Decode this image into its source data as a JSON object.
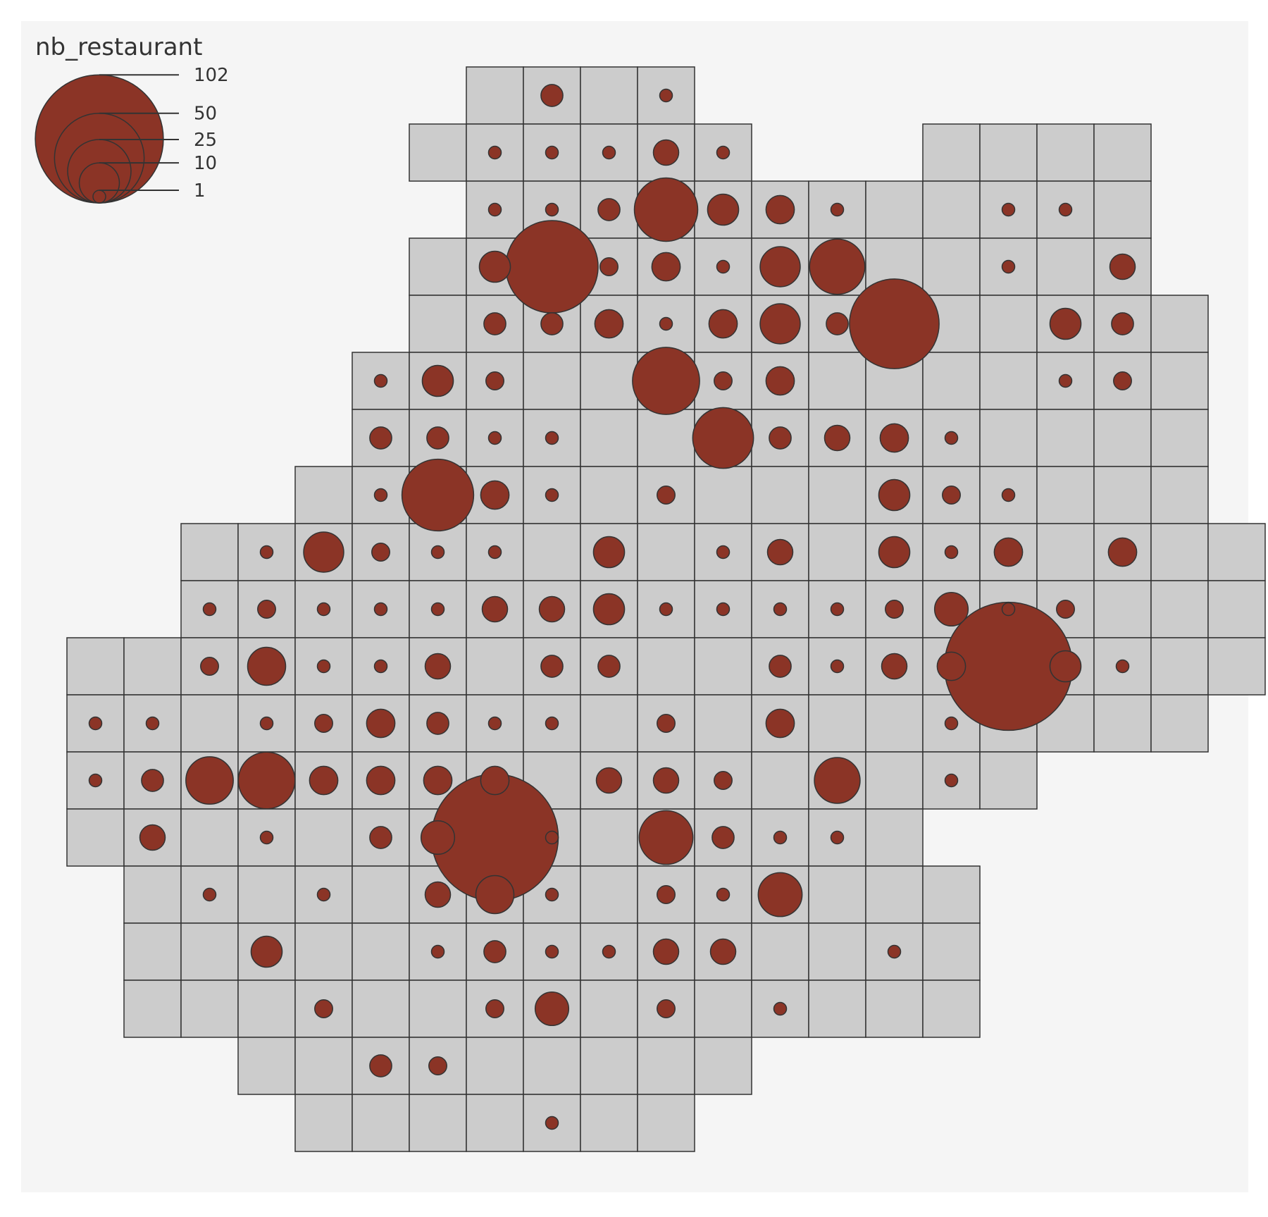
{
  "legend": {
    "title": "nb_restaurant",
    "breaks": [
      {
        "label": "102",
        "value": 102
      },
      {
        "label": "50",
        "value": 50
      },
      {
        "label": "25",
        "value": 25
      },
      {
        "label": "10",
        "value": 10
      },
      {
        "label": "1",
        "value": 1
      }
    ]
  },
  "colors": {
    "panel": "#f5f5f5",
    "cell_fill": "#cccccc",
    "cell_stroke": "#333333",
    "circle_fill": "#8b3426",
    "circle_stroke": "#333333"
  },
  "grid": {
    "row_spans": [
      [
        0,
        7,
        10
      ],
      [
        1,
        6,
        11
      ],
      [
        1,
        15,
        18
      ],
      [
        2,
        7,
        18
      ],
      [
        3,
        6,
        18
      ],
      [
        4,
        6,
        19
      ],
      [
        5,
        5,
        19
      ],
      [
        6,
        5,
        19
      ],
      [
        7,
        4,
        19
      ],
      [
        8,
        2,
        20
      ],
      [
        9,
        2,
        20
      ],
      [
        10,
        0,
        20
      ],
      [
        11,
        0,
        19
      ],
      [
        12,
        0,
        16
      ],
      [
        13,
        0,
        14
      ],
      [
        14,
        1,
        15
      ],
      [
        15,
        1,
        15
      ],
      [
        16,
        1,
        15
      ],
      [
        17,
        3,
        11
      ],
      [
        18,
        4,
        10
      ]
    ]
  },
  "symbols": [
    [
      0,
      8,
      3
    ],
    [
      0,
      10,
      1
    ],
    [
      1,
      7,
      1
    ],
    [
      1,
      8,
      1
    ],
    [
      1,
      9,
      1
    ],
    [
      1,
      10,
      4
    ],
    [
      1,
      11,
      1
    ],
    [
      2,
      7,
      1
    ],
    [
      2,
      8,
      1
    ],
    [
      2,
      9,
      3
    ],
    [
      2,
      10,
      25
    ],
    [
      2,
      11,
      6
    ],
    [
      2,
      12,
      5
    ],
    [
      2,
      13,
      1
    ],
    [
      2,
      16,
      1
    ],
    [
      2,
      17,
      1
    ],
    [
      3,
      7,
      6
    ],
    [
      3,
      8,
      53
    ],
    [
      3,
      9,
      2
    ],
    [
      3,
      10,
      5
    ],
    [
      3,
      11,
      1
    ],
    [
      3,
      12,
      10
    ],
    [
      3,
      13,
      19
    ],
    [
      3,
      16,
      1
    ],
    [
      3,
      18,
      4
    ],
    [
      4,
      7,
      3
    ],
    [
      4,
      8,
      3
    ],
    [
      4,
      9,
      5
    ],
    [
      4,
      10,
      1
    ],
    [
      4,
      11,
      5
    ],
    [
      4,
      12,
      10
    ],
    [
      4,
      13,
      3
    ],
    [
      4,
      14,
      50
    ],
    [
      4,
      17,
      6
    ],
    [
      4,
      18,
      3
    ],
    [
      5,
      5,
      1
    ],
    [
      5,
      6,
      6
    ],
    [
      5,
      7,
      2
    ],
    [
      5,
      10,
      28
    ],
    [
      5,
      11,
      2
    ],
    [
      5,
      12,
      5
    ],
    [
      5,
      17,
      1
    ],
    [
      5,
      18,
      2
    ],
    [
      6,
      5,
      3
    ],
    [
      6,
      6,
      3
    ],
    [
      6,
      7,
      1
    ],
    [
      6,
      8,
      1
    ],
    [
      6,
      11,
      23
    ],
    [
      6,
      12,
      3
    ],
    [
      6,
      13,
      4
    ],
    [
      6,
      14,
      5
    ],
    [
      6,
      15,
      1
    ],
    [
      7,
      5,
      1
    ],
    [
      7,
      6,
      32
    ],
    [
      7,
      7,
      5
    ],
    [
      7,
      8,
      1
    ],
    [
      7,
      10,
      2
    ],
    [
      7,
      14,
      6
    ],
    [
      7,
      15,
      2
    ],
    [
      7,
      16,
      1
    ],
    [
      8,
      3,
      1
    ],
    [
      8,
      4,
      10
    ],
    [
      8,
      5,
      2
    ],
    [
      8,
      6,
      1
    ],
    [
      8,
      7,
      1
    ],
    [
      8,
      9,
      6
    ],
    [
      8,
      11,
      1
    ],
    [
      8,
      12,
      4
    ],
    [
      8,
      14,
      6
    ],
    [
      8,
      15,
      1
    ],
    [
      8,
      16,
      5
    ],
    [
      8,
      18,
      5
    ],
    [
      9,
      2,
      1
    ],
    [
      9,
      3,
      2
    ],
    [
      9,
      4,
      1
    ],
    [
      9,
      5,
      1
    ],
    [
      9,
      6,
      1
    ],
    [
      9,
      7,
      4
    ],
    [
      9,
      8,
      4
    ],
    [
      9,
      9,
      6
    ],
    [
      9,
      10,
      1
    ],
    [
      9,
      11,
      1
    ],
    [
      9,
      12,
      1
    ],
    [
      9,
      13,
      1
    ],
    [
      9,
      14,
      2
    ],
    [
      9,
      15,
      7
    ],
    [
      9,
      16,
      1
    ],
    [
      9,
      17,
      2
    ],
    [
      10,
      2,
      2
    ],
    [
      10,
      3,
      9
    ],
    [
      10,
      4,
      1
    ],
    [
      10,
      5,
      1
    ],
    [
      10,
      6,
      4
    ],
    [
      10,
      8,
      3
    ],
    [
      10,
      9,
      3
    ],
    [
      10,
      12,
      3
    ],
    [
      10,
      13,
      1
    ],
    [
      10,
      14,
      4
    ],
    [
      10,
      15,
      5
    ],
    [
      10,
      16,
      102
    ],
    [
      10,
      17,
      6
    ],
    [
      10,
      18,
      1
    ],
    [
      11,
      0,
      1
    ],
    [
      11,
      1,
      1
    ],
    [
      11,
      3,
      1
    ],
    [
      11,
      4,
      2
    ],
    [
      11,
      5,
      5
    ],
    [
      11,
      6,
      3
    ],
    [
      11,
      7,
      1
    ],
    [
      11,
      8,
      1
    ],
    [
      11,
      10,
      2
    ],
    [
      11,
      12,
      5
    ],
    [
      11,
      15,
      1
    ],
    [
      12,
      0,
      1
    ],
    [
      12,
      1,
      3
    ],
    [
      12,
      2,
      14
    ],
    [
      12,
      3,
      20
    ],
    [
      12,
      4,
      5
    ],
    [
      12,
      5,
      5
    ],
    [
      12,
      6,
      5
    ],
    [
      12,
      7,
      5
    ],
    [
      12,
      9,
      4
    ],
    [
      12,
      10,
      4
    ],
    [
      12,
      11,
      2
    ],
    [
      12,
      13,
      13
    ],
    [
      12,
      15,
      1
    ],
    [
      13,
      1,
      4
    ],
    [
      13,
      3,
      1
    ],
    [
      13,
      5,
      3
    ],
    [
      13,
      6,
      7
    ],
    [
      13,
      7,
      100
    ],
    [
      13,
      8,
      1
    ],
    [
      13,
      10,
      18
    ],
    [
      13,
      11,
      3
    ],
    [
      13,
      12,
      1
    ],
    [
      13,
      13,
      1
    ],
    [
      14,
      2,
      1
    ],
    [
      14,
      4,
      1
    ],
    [
      14,
      6,
      4
    ],
    [
      14,
      7,
      9
    ],
    [
      14,
      8,
      1
    ],
    [
      14,
      10,
      2
    ],
    [
      14,
      11,
      1
    ],
    [
      14,
      12,
      12
    ],
    [
      15,
      3,
      6
    ],
    [
      15,
      6,
      1
    ],
    [
      15,
      7,
      3
    ],
    [
      15,
      8,
      1
    ],
    [
      15,
      9,
      1
    ],
    [
      15,
      10,
      4
    ],
    [
      15,
      11,
      4
    ],
    [
      15,
      14,
      1
    ],
    [
      16,
      4,
      2
    ],
    [
      16,
      7,
      2
    ],
    [
      16,
      8,
      7
    ],
    [
      16,
      10,
      2
    ],
    [
      16,
      12,
      1
    ],
    [
      17,
      5,
      3
    ],
    [
      17,
      6,
      2
    ],
    [
      18,
      8,
      1
    ]
  ]
}
